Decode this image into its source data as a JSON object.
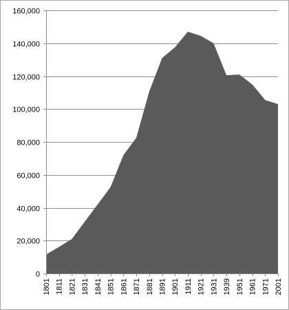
{
  "chart_data": {
    "type": "area",
    "title": "",
    "xlabel": "",
    "ylabel": "",
    "ylim": [
      0,
      160000
    ],
    "yticks": [
      0,
      20000,
      40000,
      60000,
      80000,
      100000,
      120000,
      140000,
      160000
    ],
    "ytick_labels": [
      "0",
      "20,000",
      "40,000",
      "60,000",
      "80,000",
      "100,000",
      "120,000",
      "140,000",
      "160,000"
    ],
    "grid": true,
    "legend": "none",
    "fill_color": "#5a5a5a",
    "categories": [
      "1801",
      "1811",
      "1821",
      "1831",
      "1841",
      "1851",
      "1861",
      "1871",
      "1881",
      "1891",
      "1901",
      "1911",
      "1921",
      "1931",
      "1939",
      "1951",
      "1961",
      "1971",
      "2001"
    ],
    "values": [
      11500,
      16200,
      21000,
      31500,
      42000,
      52500,
      72000,
      82500,
      110500,
      131000,
      137500,
      147000,
      144500,
      140000,
      120500,
      121000,
      115000,
      105500,
      103000
    ]
  }
}
